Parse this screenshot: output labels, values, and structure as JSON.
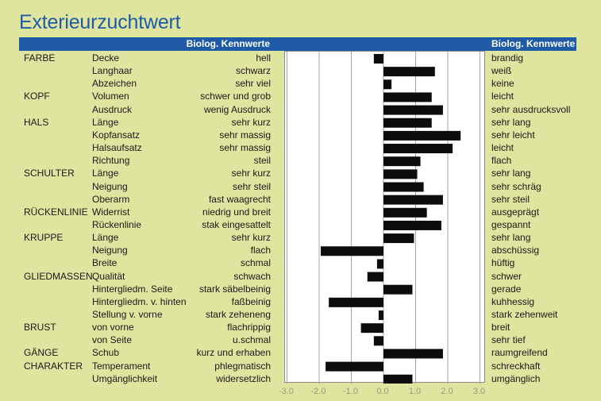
{
  "title": "Exterieurzuchtwert",
  "header": {
    "left": "Biolog. Kennwerte",
    "right": "Biolog. Kennwerte"
  },
  "chart_data": {
    "type": "bar",
    "orientation": "horizontal",
    "title": "Exterieurzuchtwert",
    "xlim": [
      -3.0,
      3.0
    ],
    "xticks": [
      "-3.0",
      "-2.0",
      "-1.0",
      "0.0",
      "1.0",
      "2.0",
      "3.0"
    ],
    "grid": true,
    "rows": [
      {
        "category": "FARBE",
        "trait": "Decke",
        "low": "hell",
        "high": "brandig",
        "value": -0.3
      },
      {
        "category": "",
        "trait": "Langhaar",
        "low": "schwarz",
        "high": "weiß",
        "value": 1.6
      },
      {
        "category": "",
        "trait": "Abzeichen",
        "low": "sehr viel",
        "high": "keine",
        "value": 0.25
      },
      {
        "category": "KOPF",
        "trait": "Volumen",
        "low": "schwer und grob",
        "high": "leicht",
        "value": 1.5
      },
      {
        "category": "",
        "trait": "Ausdruck",
        "low": "wenig Ausdruck",
        "high": "sehr ausdrucksvoll",
        "value": 1.85
      },
      {
        "category": "HALS",
        "trait": "Länge",
        "low": "sehr kurz",
        "high": "sehr lang",
        "value": 1.5
      },
      {
        "category": "",
        "trait": "Kopfansatz",
        "low": "sehr massig",
        "high": "sehr leicht",
        "value": 2.4
      },
      {
        "category": "",
        "trait": "Halsaufsatz",
        "low": "sehr massig",
        "high": "leicht",
        "value": 2.15
      },
      {
        "category": "",
        "trait": "Richtung",
        "low": "steil",
        "high": "flach",
        "value": 1.15
      },
      {
        "category": "SCHULTER",
        "trait": "Länge",
        "low": "sehr kurz",
        "high": "sehr lang",
        "value": 1.05
      },
      {
        "category": "",
        "trait": "Neigung",
        "low": "sehr steil",
        "high": "sehr schräg",
        "value": 1.25
      },
      {
        "category": "",
        "trait": "Oberarm",
        "low": "fast waagrecht",
        "high": "sehr steil",
        "value": 1.85
      },
      {
        "category": "RÜCKENLINIE",
        "trait": "Widerrist",
        "low": "niedrig und breit",
        "high": "ausgeprägt",
        "value": 1.35
      },
      {
        "category": "",
        "trait": "Rückenlinie",
        "low": "stak eingesattelt",
        "high": "gespannt",
        "value": 1.8
      },
      {
        "category": "KRUPPE",
        "trait": "Länge",
        "low": "sehr kurz",
        "high": "sehr lang",
        "value": 0.95
      },
      {
        "category": "",
        "trait": "Neigung",
        "low": "flach",
        "high": "abschüssig",
        "value": -1.95
      },
      {
        "category": "",
        "trait": "Breite",
        "low": "schmal",
        "high": "hüftig",
        "value": -0.2
      },
      {
        "category": "GLIEDMASSEN",
        "trait": "Qualität",
        "low": "schwach",
        "high": "schwer",
        "value": -0.5
      },
      {
        "category": "",
        "trait": "Hintergliedm. Seite",
        "low": "stark säbelbeinig",
        "high": "gerade",
        "value": 0.9
      },
      {
        "category": "",
        "trait": "Hintergliedm. v. hinten",
        "low": "faßbeinig",
        "high": "kuhhessig",
        "value": -1.7
      },
      {
        "category": "",
        "trait": "Stellung v. vorne",
        "low": "stark zeheneng",
        "high": "stark zehenweit",
        "value": -0.15
      },
      {
        "category": "BRUST",
        "trait": "von vorne",
        "low": "flachrippig",
        "high": "breit",
        "value": -0.7
      },
      {
        "category": "",
        "trait": "von Seite",
        "low": "u.schmal",
        "high": "sehr tief",
        "value": -0.3
      },
      {
        "category": "GÄNGE",
        "trait": "Schub",
        "low": "kurz und erhaben",
        "high": "raumgreifend",
        "value": 1.85
      },
      {
        "category": "CHARAKTER",
        "trait": "Temperament",
        "low": "phlegmatisch",
        "high": "schreckhaft",
        "value": -1.8
      },
      {
        "category": "",
        "trait": "Umgänglichkeit",
        "low": "widersetzlich",
        "high": "umgänglich",
        "value": 0.9
      }
    ]
  },
  "colors": {
    "title": "#1f5aa6",
    "header_band": "#1f5aa6",
    "background": "#dfe49e",
    "bar": "#0d0d0d",
    "grid": "#a6a6a6"
  }
}
